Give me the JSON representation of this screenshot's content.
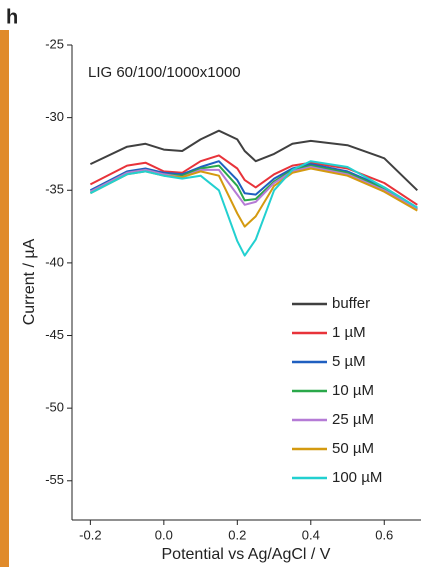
{
  "chart_data": {
    "type": "line",
    "panel_label": "h",
    "title": "LIG 60/100/1000x1000",
    "x_label": "Potential vs Ag/AgCl / V",
    "y_label": "Current / µA",
    "x": [
      -0.2,
      -0.1,
      -0.05,
      0,
      0.05,
      0.1,
      0.15,
      0.2,
      0.22,
      0.25,
      0.3,
      0.35,
      0.4,
      0.5,
      0.6,
      0.69
    ],
    "series": [
      {
        "name": "buffer",
        "color": "#404040",
        "values": [
          -33.2,
          -32.0,
          -31.8,
          -32.2,
          -32.3,
          -31.5,
          -30.9,
          -31.5,
          -32.3,
          -33.0,
          -32.5,
          -31.8,
          -31.6,
          -31.9,
          -32.8,
          -35.0
        ]
      },
      {
        "name": "1 µM",
        "color": "#e8333a",
        "values": [
          -34.6,
          -33.3,
          -33.1,
          -33.7,
          -33.8,
          -33.0,
          -32.6,
          -33.5,
          -34.3,
          -34.8,
          -33.9,
          -33.3,
          -33.1,
          -33.5,
          -34.5,
          -36.0
        ]
      },
      {
        "name": "5 µM",
        "color": "#1f5fc0",
        "values": [
          -35.0,
          -33.7,
          -33.5,
          -33.8,
          -33.9,
          -33.4,
          -33.0,
          -34.3,
          -35.2,
          -35.3,
          -34.2,
          -33.5,
          -33.2,
          -33.7,
          -34.8,
          -36.2
        ]
      },
      {
        "name": "10 µM",
        "color": "#2aa84a",
        "values": [
          -35.1,
          -33.8,
          -33.6,
          -33.9,
          -34.0,
          -33.5,
          -33.3,
          -34.7,
          -35.7,
          -35.6,
          -34.4,
          -33.6,
          -33.3,
          -33.8,
          -34.9,
          -36.3
        ]
      },
      {
        "name": "25 µM",
        "color": "#b57bd6",
        "values": [
          -35.1,
          -33.8,
          -33.6,
          -33.9,
          -34.1,
          -33.6,
          -33.6,
          -35.3,
          -36.0,
          -35.8,
          -34.5,
          -33.7,
          -33.4,
          -33.9,
          -35.0,
          -36.3
        ]
      },
      {
        "name": "50 µM",
        "color": "#d49a10",
        "values": [
          -35.2,
          -33.9,
          -33.7,
          -34.0,
          -34.1,
          -33.7,
          -34.0,
          -36.6,
          -37.5,
          -36.8,
          -34.7,
          -33.8,
          -33.5,
          -34.0,
          -35.1,
          -36.4
        ]
      },
      {
        "name": "100 µM",
        "color": "#22d0d0",
        "values": [
          -35.2,
          -33.9,
          -33.7,
          -34.0,
          -34.2,
          -34.0,
          -35.0,
          -38.5,
          -39.5,
          -38.4,
          -35.0,
          -33.6,
          -33.0,
          -33.4,
          -34.8,
          -36.2
        ]
      }
    ],
    "xlim": [
      -0.25,
      0.7
    ],
    "xticks": [
      -0.2,
      {
        "value": 0,
        "label": "0.0"
      },
      0.2,
      0.4,
      0.6
    ],
    "ylim": [
      -57.7,
      -25
    ],
    "yticks": [
      -25,
      -30,
      -35,
      -40,
      -45,
      -50,
      -55
    ],
    "legend": "lower right"
  }
}
